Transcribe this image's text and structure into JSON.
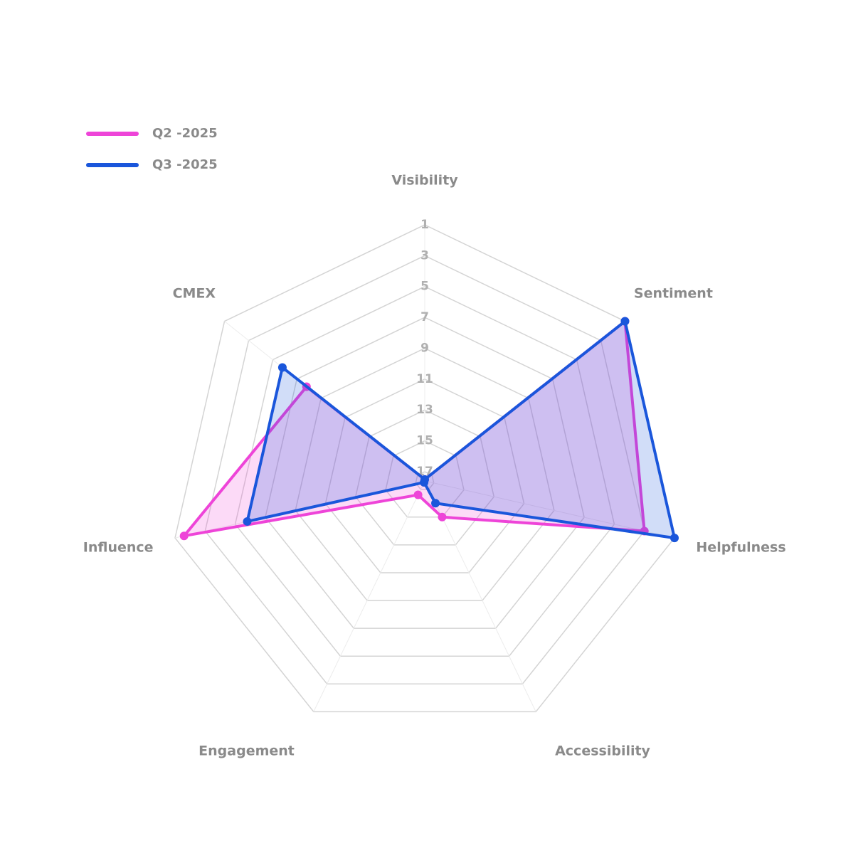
{
  "chart_data": {
    "type": "radar",
    "categories": [
      "Visibility",
      "Sentiment",
      "Helpfulness",
      "Accessibility",
      "Engagement",
      "Influence",
      "CMEX"
    ],
    "series": [
      {
        "name": "Q2 -2025",
        "color": "#ee44d8",
        "values": [
          17.5,
          1,
          3,
          15,
          16.6,
          1.6,
          7.8
        ]
      },
      {
        "name": "Q3 -2025",
        "color": "#1a56db",
        "values": [
          17.5,
          1,
          1,
          16,
          17.5,
          5.8,
          5.8
        ]
      }
    ],
    "rlim": [
      1,
      17.6
    ],
    "rticks": [
      1,
      3,
      5,
      7,
      9,
      11,
      13,
      15,
      17
    ],
    "reversed": true,
    "grid": true,
    "legend": "top-left"
  }
}
